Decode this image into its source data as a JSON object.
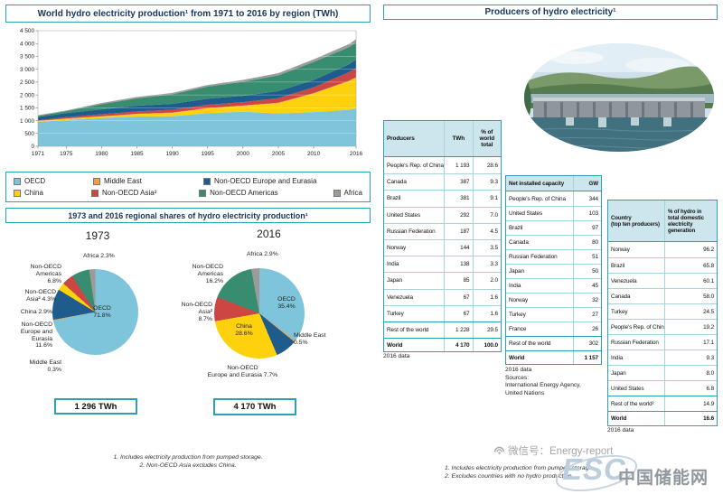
{
  "colors": {
    "teal_border": "#2e9fb4",
    "table_grid": "#a5d4de",
    "table_header_bg": "#cde6ee",
    "title_text": "#16365c"
  },
  "left": {
    "area_title": "World hydro electricity production¹ from 1971 to 2016 by region (TWh)",
    "legend": {
      "row1": [
        {
          "label": "OECD",
          "color": "#7ec5dc"
        },
        {
          "label": "Middle East",
          "color": "#f0a03c"
        },
        {
          "label": "Non-OECD Europe and Eurasia",
          "color": "#1d5c8d"
        }
      ],
      "row2": [
        {
          "label": "China",
          "color": "#fdd20c"
        },
        {
          "label": "Non-OECD Asia²",
          "color": "#cc4744"
        },
        {
          "label": "Non-OECD Americas",
          "color": "#388c70"
        },
        {
          "label": "Africa",
          "color": "#9b9b9a"
        }
      ]
    },
    "shares_title": "1973 and 2016 regional shares of hydro electricity production¹",
    "pie_1973": {
      "heading": "1973",
      "total": "1 296 TWh",
      "labels": {
        "africa": "Africa 2.3%",
        "americas": "Non-OECD\nAmericas\n6.8%",
        "asia": "Non-OECD\nAsia² 4.3%",
        "china": "China 2.9%",
        "eurasia": "Non-OECD\nEurope and\nEurasia\n11.6%",
        "middle_east": "Middle East\n0.3%",
        "oecd": "OECD\n71.8%"
      }
    },
    "pie_2016": {
      "heading": "2016",
      "total": "4 170 TWh",
      "labels": {
        "africa": "Africa 2.9%",
        "americas": "Non-OECD\nAmericas\n16.2%",
        "asia": "Non-OECD\nAsia²\n8.7%",
        "china": "China\n28.6%",
        "eurasia": "Non-OECD\nEurope and Eurasia 7.7%",
        "middle_east": "Middle East\n0.5%",
        "oecd": "OECD\n35.4%"
      }
    },
    "footnotes": [
      "1. Includes electricity production from pumped storage.",
      "2. Non-OECD Asia excludes China."
    ]
  },
  "right": {
    "title": "Producers of hydro electricity¹",
    "producers_table": {
      "headers": [
        "Producers",
        "TWh",
        "% of world total"
      ],
      "rows": [
        {
          "name": "People's Rep. of China",
          "v1": "1 193",
          "v2": "28.6"
        },
        {
          "name": "Canada",
          "v1": "387",
          "v2": "9.3"
        },
        {
          "name": "Brazil",
          "v1": "381",
          "v2": "9.1"
        },
        {
          "name": "United States",
          "v1": "292",
          "v2": "7.0"
        },
        {
          "name": "Russian Federation",
          "v1": "187",
          "v2": "4.5"
        },
        {
          "name": "Norway",
          "v1": "144",
          "v2": "3.5"
        },
        {
          "name": "India",
          "v1": "138",
          "v2": "3.3"
        },
        {
          "name": "Japan",
          "v1": "85",
          "v2": "2.0"
        },
        {
          "name": "Venezuela",
          "v1": "67",
          "v2": "1.6"
        },
        {
          "name": "Turkey",
          "v1": "67",
          "v2": "1.6"
        },
        {
          "name": "Rest of the world",
          "v1": "1 228",
          "v2": "29.5"
        }
      ],
      "world_row": {
        "name": "World",
        "v1": "4 170",
        "v2": "100.0"
      },
      "note": "2016 data"
    },
    "capacity_table": {
      "headers": [
        "Net installed capacity",
        "GW"
      ],
      "rows": [
        {
          "name": "People's Rep. of China",
          "v1": "344"
        },
        {
          "name": "United States",
          "v1": "103"
        },
        {
          "name": "Brazil",
          "v1": "97"
        },
        {
          "name": "Canada",
          "v1": "80"
        },
        {
          "name": "Russian Federation",
          "v1": "51"
        },
        {
          "name": "Japan",
          "v1": "50"
        },
        {
          "name": "India",
          "v1": "45"
        },
        {
          "name": "Norway",
          "v1": "32"
        },
        {
          "name": "Turkey",
          "v1": "27"
        },
        {
          "name": "France",
          "v1": "26"
        },
        {
          "name": "Rest of the world",
          "v1": "302"
        }
      ],
      "world_row": {
        "name": "World",
        "v1": "1 157"
      },
      "notes": [
        "2016 data",
        "Sources:",
        "International Energy Agency,",
        "United Nations"
      ]
    },
    "share_table": {
      "headers": [
        "Country\n(top ten producers)",
        "% of hydro in total domestic electricity generation"
      ],
      "rows": [
        {
          "name": "Norway",
          "v1": "96.2"
        },
        {
          "name": "Brazil",
          "v1": "65.8"
        },
        {
          "name": "Venezuela",
          "v1": "60.1"
        },
        {
          "name": "Canada",
          "v1": "58.0"
        },
        {
          "name": "Turkey",
          "v1": "24.5"
        },
        {
          "name": "People's Rep. of China",
          "v1": "19.2"
        },
        {
          "name": "Russian Federation",
          "v1": "17.1"
        },
        {
          "name": "India",
          "v1": "9.3"
        },
        {
          "name": "Japan",
          "v1": "8.0"
        },
        {
          "name": "United States",
          "v1": "6.8"
        },
        {
          "name": "Rest of the world²",
          "v1": "14.9"
        }
      ],
      "world_row": {
        "name": "World",
        "v1": "16.6"
      },
      "note": "2016 data"
    },
    "footnotes": [
      "1. Includes electricity production from pumped storage.",
      "2. Excludes countries with no hydro production."
    ]
  },
  "watermark": {
    "wechat": "微信号：Energy-report",
    "esc": "ESC",
    "cn": "中国储能网"
  },
  "chart_data": [
    {
      "type": "area",
      "stacked": true,
      "title": "World hydro electricity production from 1971 to 2016 by region (TWh)",
      "ylabel": "TWh",
      "ylim": [
        0,
        4500
      ],
      "y_tick_step": 500,
      "grid": true,
      "x": [
        1971,
        1975,
        1980,
        1985,
        1990,
        1995,
        2000,
        2005,
        2010,
        2015,
        2016
      ],
      "x_ticks": [
        1971,
        1975,
        1980,
        1985,
        1990,
        1995,
        2000,
        2005,
        2010,
        2016
      ],
      "series": [
        {
          "name": "OECD",
          "color": "#7ec5dc",
          "values": [
            950,
            1030,
            1100,
            1160,
            1170,
            1290,
            1350,
            1280,
            1330,
            1420,
            1476
          ]
        },
        {
          "name": "China",
          "color": "#fdd20c",
          "values": [
            30,
            45,
            58,
            92,
            127,
            187,
            222,
            397,
            722,
            1113,
            1193
          ]
        },
        {
          "name": "Middle East",
          "color": "#f0a03c",
          "values": [
            5,
            8,
            10,
            12,
            15,
            14,
            15,
            20,
            16,
            20,
            21
          ]
        },
        {
          "name": "Non-OECD Asia",
          "color": "#cc4744",
          "values": [
            27,
            50,
            80,
            95,
            110,
            125,
            132,
            180,
            232,
            330,
            363
          ]
        },
        {
          "name": "Non-OECD Europe and Eurasia",
          "color": "#1d5c8d",
          "values": [
            130,
            160,
            190,
            220,
            230,
            240,
            246,
            270,
            281,
            310,
            321
          ]
        },
        {
          "name": "Non-OECD Americas",
          "color": "#388c70",
          "values": [
            42,
            72,
            200,
            290,
            370,
            470,
            545,
            612,
            700,
            668,
            675
          ]
        },
        {
          "name": "Africa",
          "color": "#9b9b9a",
          "values": [
            26,
            30,
            48,
            52,
            56,
            62,
            75,
            90,
            104,
            116,
            121
          ]
        }
      ]
    },
    {
      "type": "pie",
      "title": "1973 regional shares of hydro electricity production",
      "total_label": "1 296 TWh",
      "slices": [
        {
          "label": "OECD",
          "value_pct": 71.8,
          "color": "#7ec5dc"
        },
        {
          "label": "Middle East",
          "value_pct": 0.3,
          "color": "#f0a03c"
        },
        {
          "label": "Non-OECD Europe and Eurasia",
          "value_pct": 11.6,
          "color": "#1d5c8d"
        },
        {
          "label": "China",
          "value_pct": 2.9,
          "color": "#fdd20c"
        },
        {
          "label": "Non-OECD Asia",
          "value_pct": 4.3,
          "color": "#cc4744"
        },
        {
          "label": "Non-OECD Americas",
          "value_pct": 6.8,
          "color": "#388c70"
        },
        {
          "label": "Africa",
          "value_pct": 2.3,
          "color": "#9b9b9a"
        }
      ]
    },
    {
      "type": "pie",
      "title": "2016 regional shares of hydro electricity production",
      "total_label": "4 170 TWh",
      "slices": [
        {
          "label": "OECD",
          "value_pct": 35.4,
          "color": "#7ec5dc"
        },
        {
          "label": "Middle East",
          "value_pct": 0.5,
          "color": "#f0a03c"
        },
        {
          "label": "Non-OECD Europe and Eurasia",
          "value_pct": 7.7,
          "color": "#1d5c8d"
        },
        {
          "label": "China",
          "value_pct": 28.6,
          "color": "#fdd20c"
        },
        {
          "label": "Non-OECD Asia",
          "value_pct": 8.7,
          "color": "#cc4744"
        },
        {
          "label": "Non-OECD Americas",
          "value_pct": 16.2,
          "color": "#388c70"
        },
        {
          "label": "Africa",
          "value_pct": 2.9,
          "color": "#9b9b9a"
        }
      ]
    }
  ]
}
